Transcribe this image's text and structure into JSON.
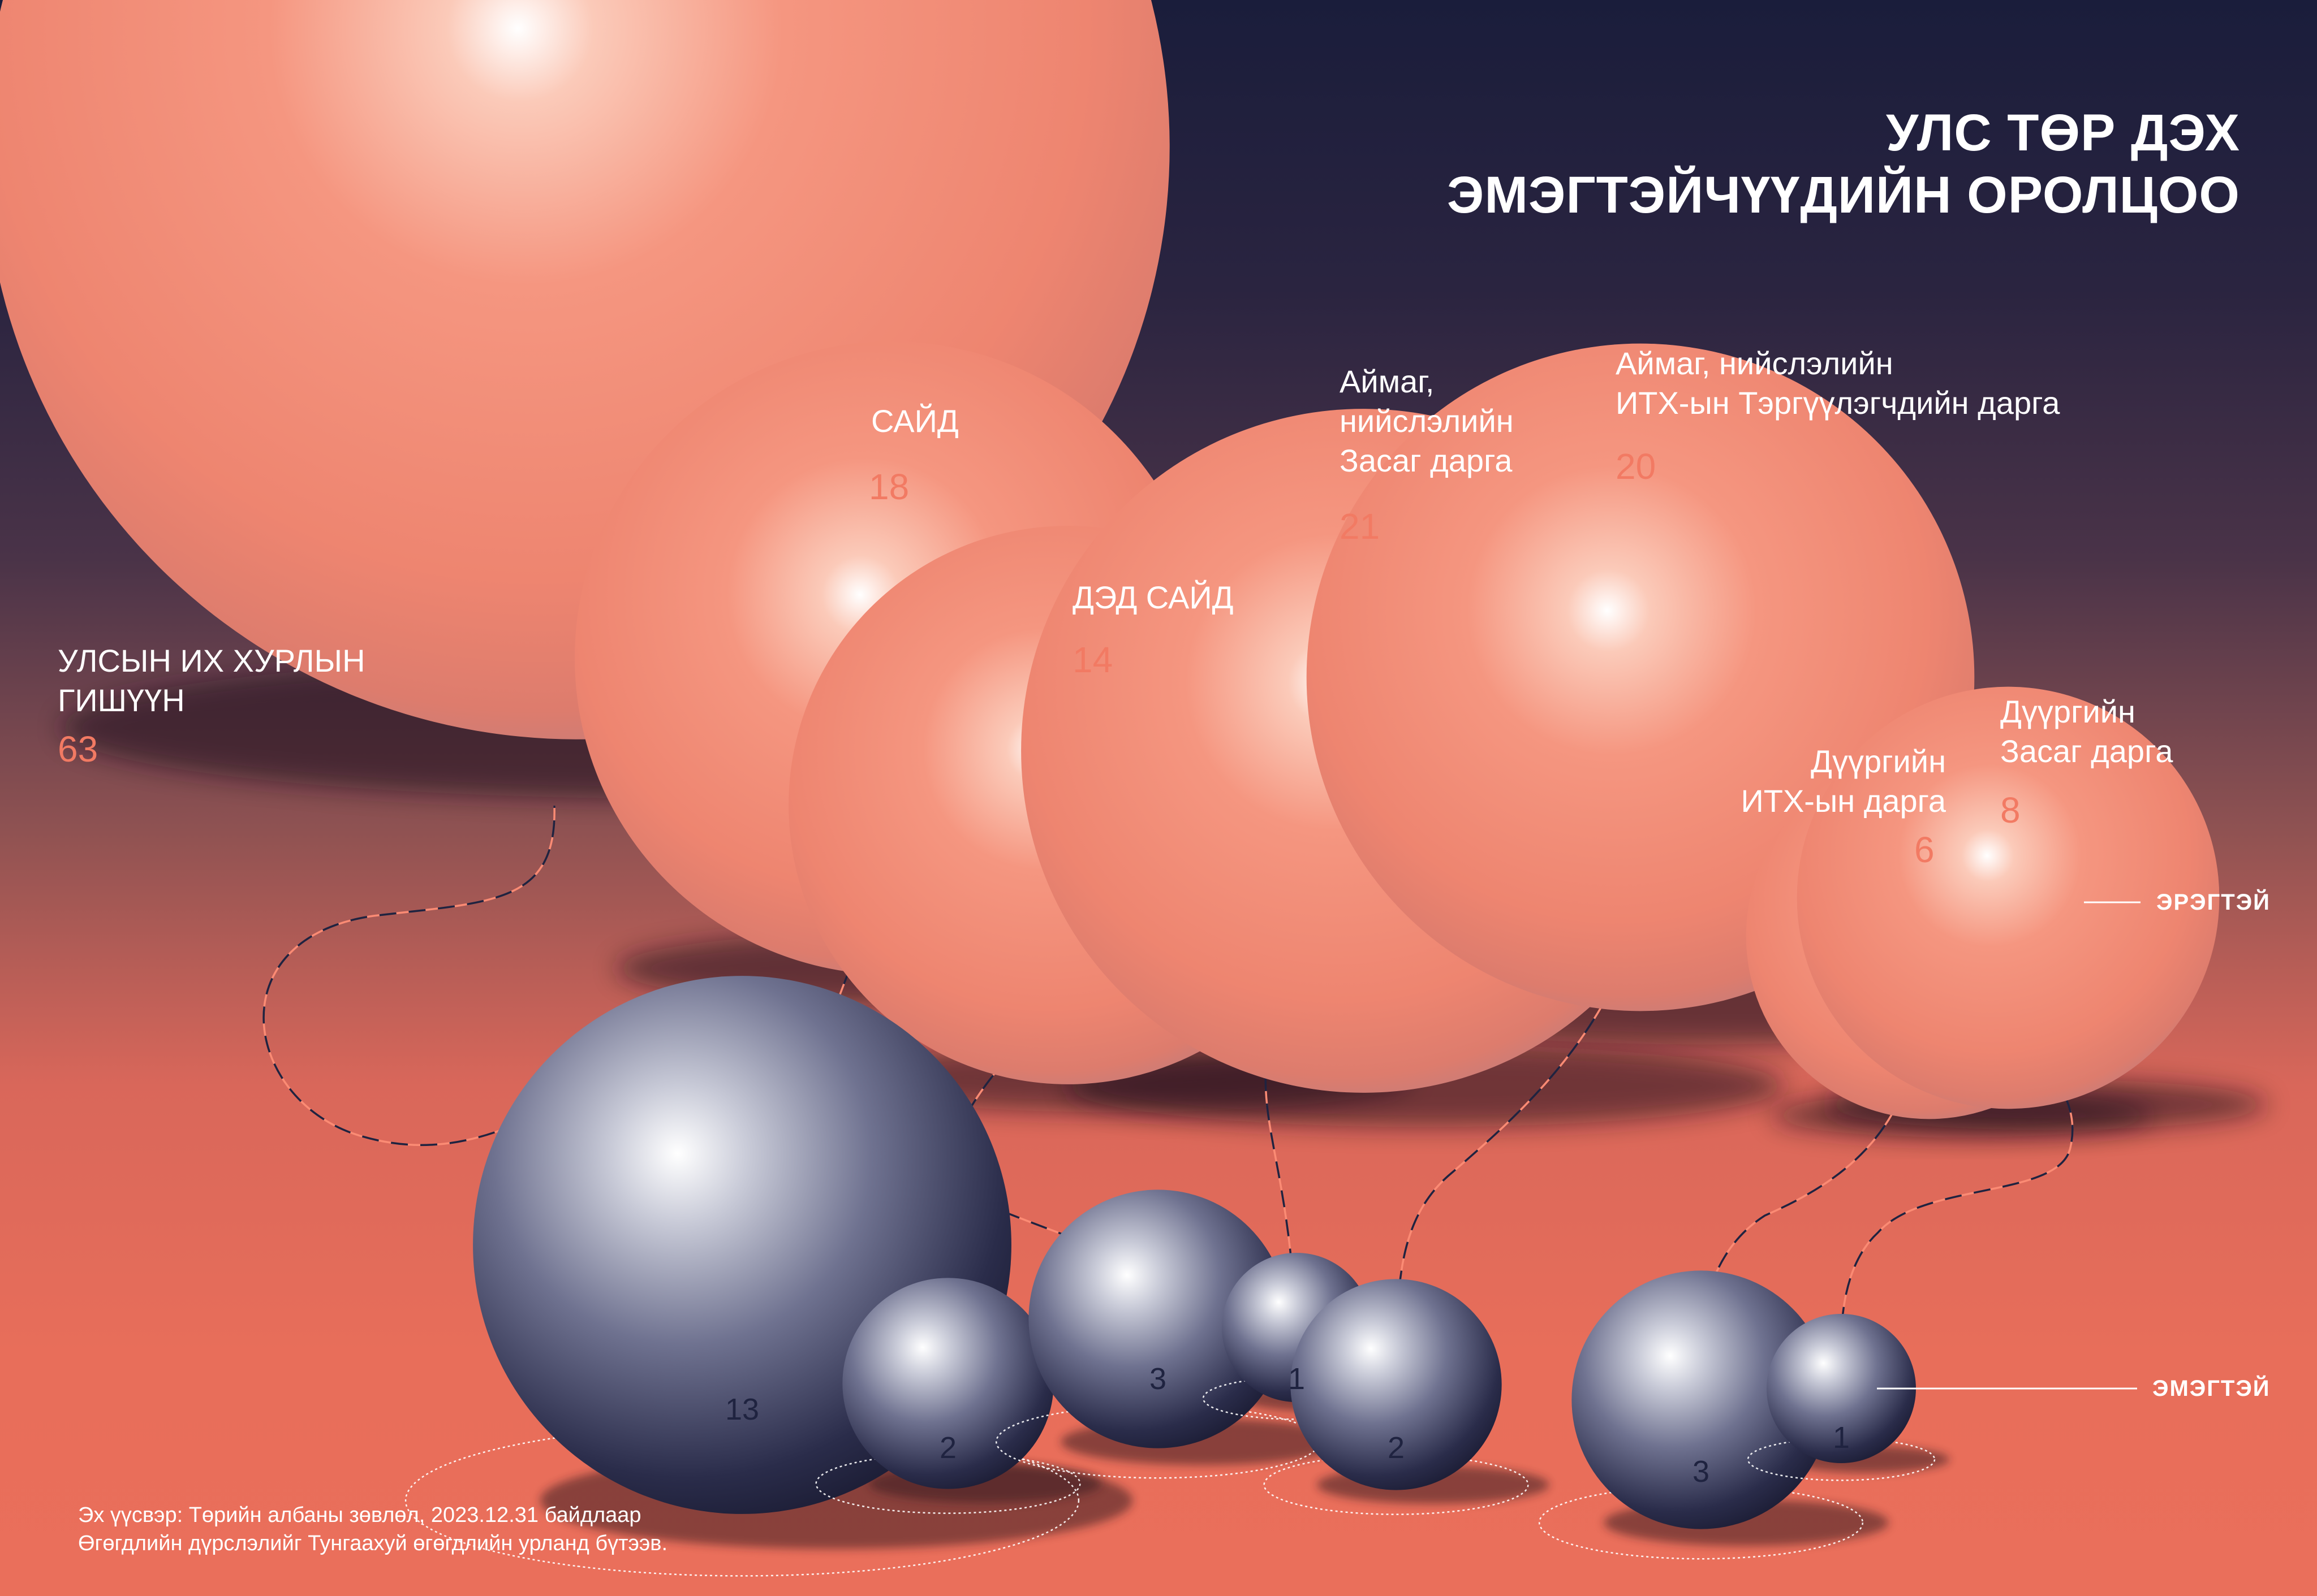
{
  "title_line1": "УЛС ТӨР ДЭХ",
  "title_line2": "ЭМЭГТЭЙЧҮҮДИЙН ОРОЛЦОО",
  "legend": {
    "male": "ЭРЭГТЭЙ",
    "female": "ЭМЭГТЭЙ"
  },
  "source_line1": "Эх үүсвэр: Төрийн албаны зөвлөл, 2023.12.31 байдлаар",
  "source_line2": "Өгөгдлийн дүрслэлийг Тунгаахуй өгөгдлийн урланд бүтээв.",
  "colors": {
    "male_sphere": "#f08a72",
    "female_sphere": "#2a2c4a",
    "value_accent": "#f27a63",
    "background_top": "#1a1d3b",
    "background_bottom": "#ea6f5b"
  },
  "chart_data": {
    "type": "bubble",
    "categories": [
      "УЛСЫН ИХ ХУРЛЫН ГИШҮҮН",
      "САЙД",
      "ДЭД САЙД",
      "Аймаг, нийслэлийн Засаг дарга",
      "Аймаг, нийслэлийн ИТХ-ын Тэргүүлэгчдийн дарга",
      "Дүүргийн ИТХ-ын дарга",
      "Дүүргийн Засаг дарга"
    ],
    "labels": [
      "УЛСЫН ИХ ХУРЛЫН\nГИШҮҮН",
      "САЙД",
      "ДЭД САЙД",
      "Аймаг,\nнийслэлийн\nЗасаг дарга",
      "Аймаг, нийслэлийн\nИТХ-ын Тэргүүлэгчдийн дарга",
      "Дүүргийн\nИТХ-ын дарга",
      "Дүүргийн\nЗасаг дарга"
    ],
    "series": [
      {
        "name": "ЭРЭГТЭЙ",
        "values": [
          63,
          18,
          14,
          21,
          20,
          6,
          8
        ]
      },
      {
        "name": "ЭМЭГТЭЙ",
        "values": [
          13,
          2,
          3,
          1,
          2,
          3,
          1
        ]
      }
    ]
  }
}
